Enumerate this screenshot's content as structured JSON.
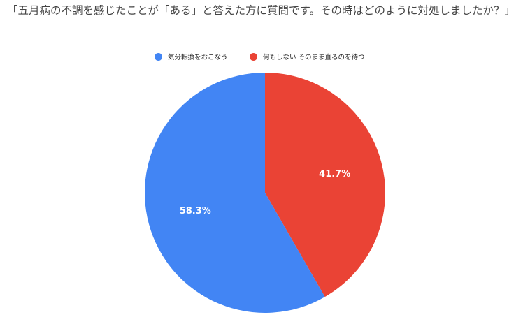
{
  "chart_data": {
    "type": "pie",
    "title": "「五月病の不調を感じたことが「ある」と答えた方に質問です。その時はどのように対処しましたか？」",
    "slices": [
      {
        "label": "気分転換をおこなう",
        "value": 58.3,
        "display": "58.3%",
        "color": "#4285f4"
      },
      {
        "label": "何もしない そのまま直るのを待つ",
        "value": 41.7,
        "display": "41.7%",
        "color": "#ea4335"
      }
    ],
    "legend_position": "top"
  }
}
